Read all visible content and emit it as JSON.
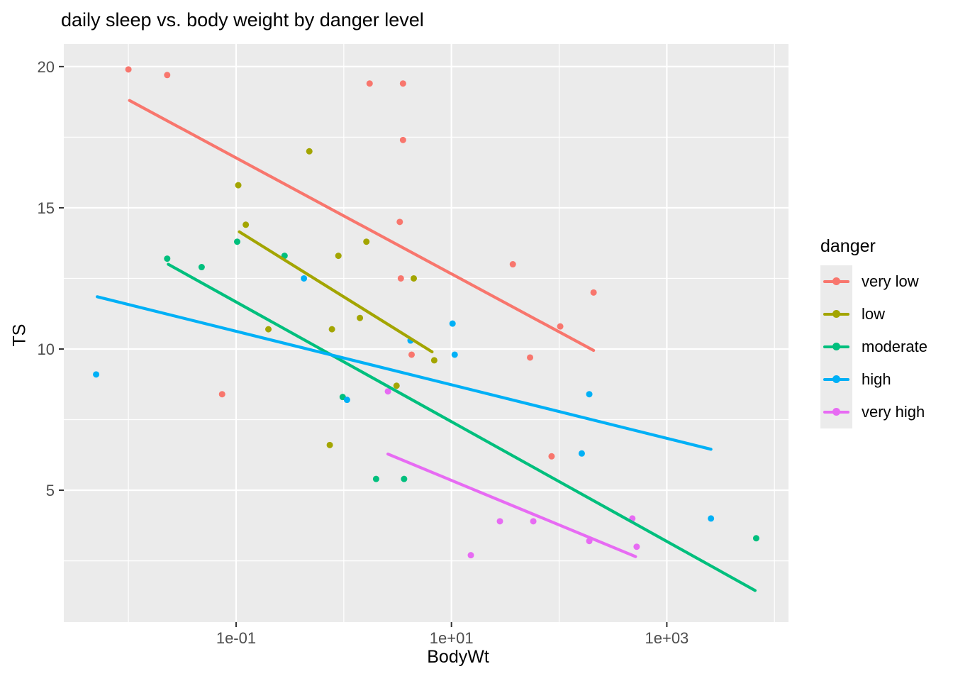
{
  "chart_data": {
    "type": "scatter",
    "title": "daily sleep vs. body weight by danger level",
    "xlabel": "BodyWt",
    "ylabel": "TS",
    "x_scale": "log10",
    "xlim": [
      -2.6,
      4.13
    ],
    "ylim": [
      0.33,
      20.8
    ],
    "x_ticks": [
      {
        "label": "1e-01",
        "value": -1
      },
      {
        "label": "1e+01",
        "value": 1
      },
      {
        "label": "1e+03",
        "value": 3
      }
    ],
    "x_minor": [
      -2,
      0,
      2,
      4
    ],
    "y_ticks": [
      {
        "label": "20",
        "value": 20
      },
      {
        "label": "15",
        "value": 15
      },
      {
        "label": "10",
        "value": 10
      },
      {
        "label": "5",
        "value": 5
      }
    ],
    "y_minor": [
      2.5,
      7.5,
      12.5,
      17.5
    ],
    "grid": true,
    "panel_background": "#EBEBEB",
    "grid_color": "#FFFFFF",
    "tick_label_color": "#4D4D4D",
    "tick_mark_color": "#333333",
    "legend_title": "danger",
    "legend_position": "right",
    "series": [
      {
        "name": "very low",
        "color": "#F8766D",
        "points": [
          [
            -2.0,
            19.9
          ],
          [
            -1.64,
            19.7
          ],
          [
            0.24,
            19.4
          ],
          [
            0.55,
            19.4
          ],
          [
            0.55,
            17.4
          ],
          [
            0.52,
            14.5
          ],
          [
            0.53,
            12.5
          ],
          [
            1.57,
            13.0
          ],
          [
            2.32,
            12.0
          ],
          [
            2.01,
            10.8
          ],
          [
            0.63,
            9.8
          ],
          [
            1.73,
            9.7
          ],
          [
            -1.13,
            8.4
          ],
          [
            1.93,
            6.2
          ]
        ],
        "trend": [
          [
            -1.99,
            18.8
          ],
          [
            2.32,
            9.95
          ]
        ]
      },
      {
        "name": "low",
        "color": "#A3A500",
        "points": [
          [
            -0.32,
            17.0
          ],
          [
            -0.98,
            15.8
          ],
          [
            -0.91,
            14.4
          ],
          [
            0.21,
            13.8
          ],
          [
            -0.05,
            13.3
          ],
          [
            0.65,
            12.5
          ],
          [
            0.15,
            11.1
          ],
          [
            -0.7,
            10.7
          ],
          [
            -0.11,
            10.7
          ],
          [
            0.84,
            9.6
          ],
          [
            0.49,
            8.7
          ],
          [
            -0.13,
            6.6
          ]
        ],
        "trend": [
          [
            -0.97,
            14.15
          ],
          [
            0.82,
            9.9
          ]
        ]
      },
      {
        "name": "moderate",
        "color": "#00BF7D",
        "points": [
          [
            -0.99,
            13.8
          ],
          [
            -1.64,
            13.2
          ],
          [
            -1.32,
            12.9
          ],
          [
            -0.55,
            13.3
          ],
          [
            -0.01,
            8.3
          ],
          [
            0.3,
            5.4
          ],
          [
            0.56,
            5.4
          ],
          [
            3.83,
            3.3
          ]
        ],
        "trend": [
          [
            -1.63,
            13.0
          ],
          [
            3.82,
            1.45
          ]
        ]
      },
      {
        "name": "high",
        "color": "#00B0F6",
        "points": [
          [
            -2.3,
            9.1
          ],
          [
            -0.37,
            12.5
          ],
          [
            1.01,
            10.9
          ],
          [
            0.62,
            10.3
          ],
          [
            1.03,
            9.8
          ],
          [
            0.03,
            8.2
          ],
          [
            2.28,
            8.4
          ],
          [
            2.21,
            6.3
          ],
          [
            3.41,
            4.0
          ]
        ],
        "trend": [
          [
            -2.29,
            11.85
          ],
          [
            3.41,
            6.45
          ]
        ]
      },
      {
        "name": "very high",
        "color": "#E76BF3",
        "points": [
          [
            0.41,
            8.5
          ],
          [
            1.18,
            2.7
          ],
          [
            1.45,
            3.9
          ],
          [
            1.76,
            3.9
          ],
          [
            2.28,
            3.2
          ],
          [
            2.68,
            4.0
          ],
          [
            2.72,
            3.0
          ]
        ],
        "trend": [
          [
            0.41,
            6.28
          ],
          [
            2.71,
            2.65
          ]
        ]
      }
    ]
  }
}
